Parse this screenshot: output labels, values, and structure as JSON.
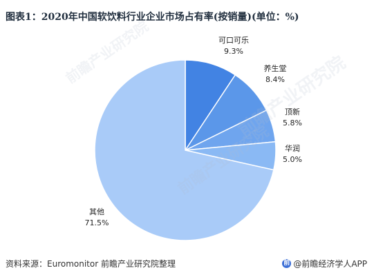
{
  "title": "图表1：2020年中国软饮料行业企业市场占有率(按销量)(单位：%)",
  "watermark": "前瞻产业研究院",
  "footer": {
    "source": "资料来源：Euromonitor 前瞻产业研究院整理",
    "brand": "@前瞻经济学人APP"
  },
  "colors": {
    "slices": [
      "#4283e3",
      "#5b97e9",
      "#6fa5ee",
      "#8ab9f4",
      "#a9cbf8"
    ],
    "separator": "#ffffff"
  },
  "chart_data": {
    "type": "pie",
    "title": "图表1：2020年中国软饮料行业企业市场占有率(按销量)(单位：%)",
    "unit": "%",
    "start_angle_deg": 0,
    "direction": "clockwise",
    "categories": [
      "可口可乐",
      "养生堂",
      "顶新",
      "华润",
      "其他"
    ],
    "values": [
      9.3,
      8.4,
      5.8,
      5.0,
      71.5
    ],
    "value_labels": [
      "9.3%",
      "8.4%",
      "5.8%",
      "5.0%",
      "71.5%"
    ]
  }
}
